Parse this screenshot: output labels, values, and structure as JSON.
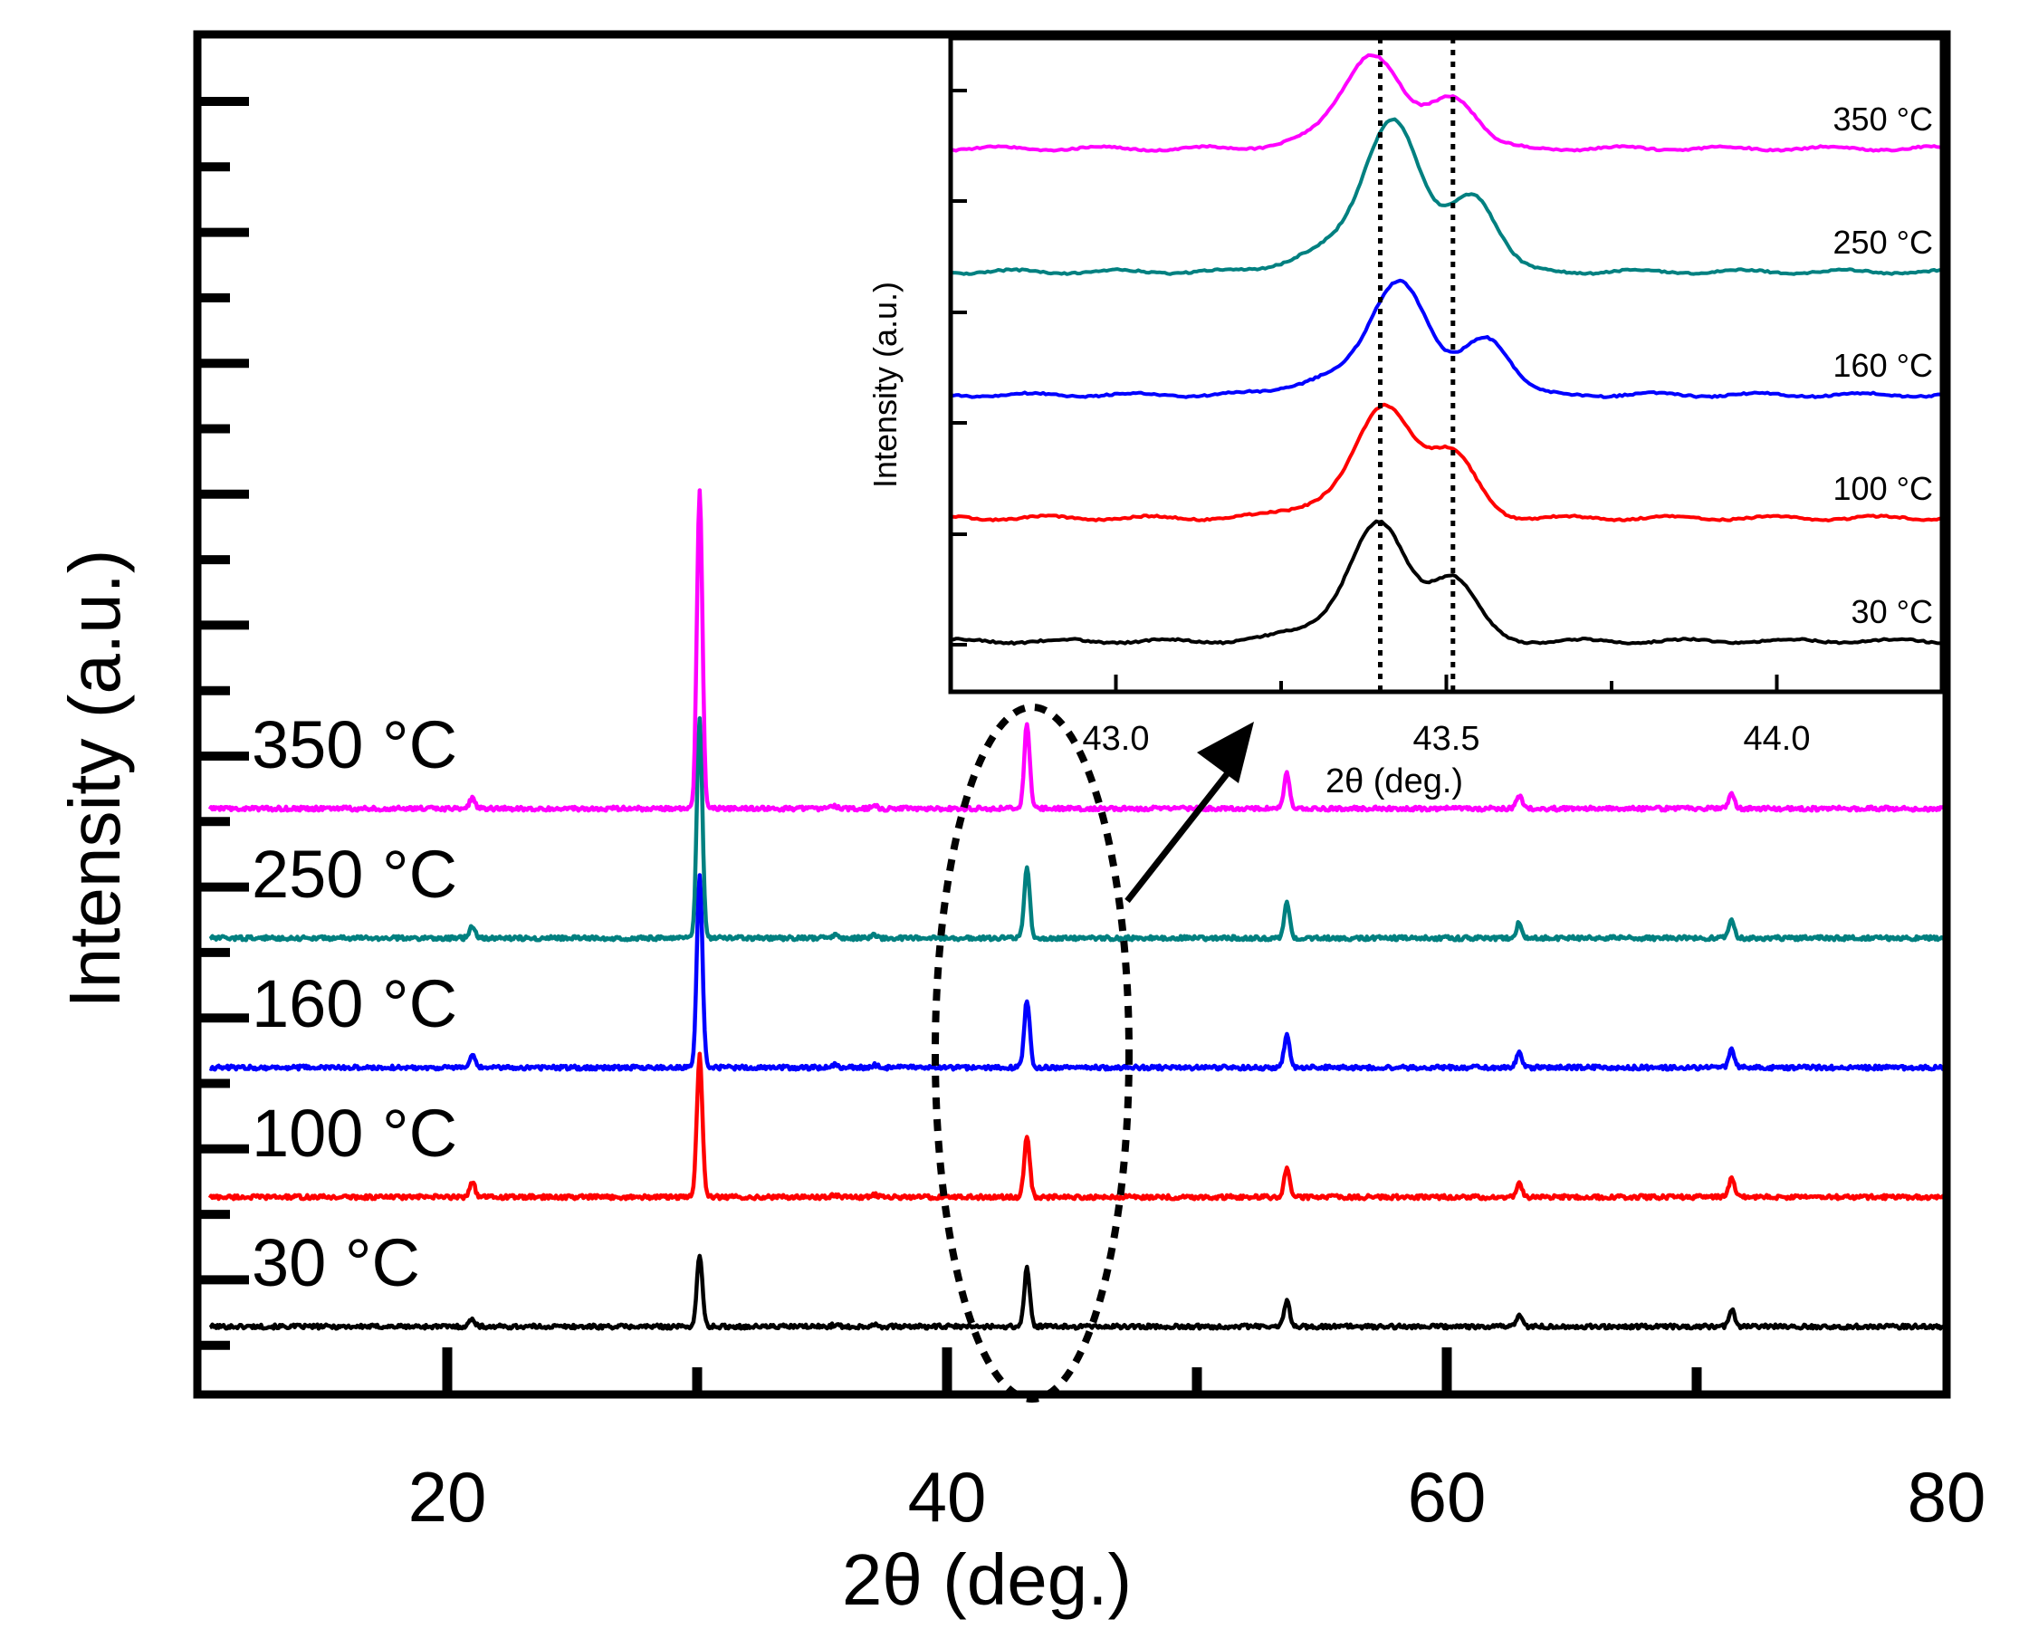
{
  "chart_data": [
    {
      "type": "line",
      "panel": "main",
      "xlabel": "2θ (deg.)",
      "ylabel": "Intensity (a.u.)",
      "xlim": [
        10,
        80
      ],
      "xticks": [
        20,
        40,
        60,
        80
      ],
      "yticks_shown": false,
      "peak_positions": [
        21.0,
        30.1,
        35.5,
        37.1,
        43.2,
        53.6,
        62.9,
        71.4
      ],
      "series": [
        {
          "name": "30 °C",
          "label": "30 °C",
          "color": "#000000",
          "offset": 0,
          "peak_heights": [
            6,
            55,
            1.5,
            2,
            45,
            20,
            10,
            14
          ]
        },
        {
          "name": "100 °C",
          "label": "100 °C",
          "color": "#ff0000",
          "offset": 100,
          "peak_heights": [
            12,
            110,
            2,
            2,
            48,
            22,
            10,
            14
          ]
        },
        {
          "name": "160 °C",
          "label": "160 °C",
          "color": "#0000ff",
          "offset": 200,
          "peak_heights": [
            9,
            150,
            2,
            2,
            52,
            25,
            12,
            14
          ]
        },
        {
          "name": "250 °C",
          "label": "250 °C",
          "color": "#008080",
          "offset": 300,
          "peak_heights": [
            9,
            170,
            2,
            2,
            55,
            27,
            12,
            14
          ]
        },
        {
          "name": "350 °C",
          "label": "350 °C",
          "color": "#ff00ff",
          "offset": 400,
          "peak_heights": [
            8,
            245,
            2,
            2,
            65,
            27,
            10,
            12
          ]
        }
      ],
      "annotations": [
        "dashed ellipse around peak at 43.2 deg",
        "arrow pointing to inset"
      ]
    },
    {
      "type": "line",
      "panel": "inset",
      "xlabel": "2θ (deg.)",
      "ylabel": "Intensity (a.u.)",
      "xlim": [
        42.75,
        44.25
      ],
      "xticks": [
        43.0,
        43.5,
        44.0
      ],
      "reference_lines_x": [
        43.4,
        43.51
      ],
      "series": [
        {
          "name": "30 °C",
          "label": "30 °C",
          "color": "#000000",
          "offset": 0,
          "peak1": {
            "x": 43.4,
            "h": 88
          },
          "peak2": {
            "x": 43.51,
            "h": 50
          }
        },
        {
          "name": "100 °C",
          "label": "100 °C",
          "color": "#ff0000",
          "offset": 100,
          "peak1": {
            "x": 43.41,
            "h": 85
          },
          "peak2": {
            "x": 43.51,
            "h": 50
          }
        },
        {
          "name": "160 °C",
          "label": "160 °C",
          "color": "#0000ff",
          "offset": 200,
          "peak1": {
            "x": 43.43,
            "h": 90
          },
          "peak2": {
            "x": 43.56,
            "h": 47
          }
        },
        {
          "name": "250 °C",
          "label": "250 °C",
          "color": "#008080",
          "offset": 300,
          "peak1": {
            "x": 43.42,
            "h": 118
          },
          "peak2": {
            "x": 43.54,
            "h": 62
          }
        },
        {
          "name": "350 °C",
          "label": "350 °C",
          "color": "#ff00ff",
          "offset": 400,
          "peak1": {
            "x": 43.39,
            "h": 70
          },
          "peak2": {
            "x": 43.51,
            "h": 42
          }
        }
      ]
    }
  ]
}
